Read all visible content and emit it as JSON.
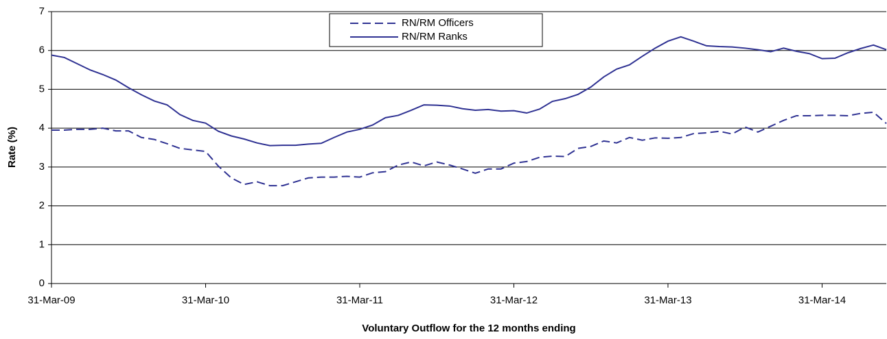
{
  "chart_data": {
    "type": "line",
    "y_label": "Rate (%)",
    "x_label": "Voluntary Outflow for the 12 months ending",
    "categories": [
      "31-Mar-09",
      null,
      null,
      null,
      null,
      null,
      null,
      null,
      null,
      null,
      null,
      null,
      "31-Mar-10",
      null,
      null,
      null,
      null,
      null,
      null,
      null,
      null,
      null,
      null,
      null,
      "31-Mar-11",
      null,
      null,
      null,
      null,
      null,
      null,
      null,
      null,
      null,
      null,
      null,
      "31-Mar-12",
      null,
      null,
      null,
      null,
      null,
      null,
      null,
      null,
      null,
      null,
      null,
      "31-Mar-13",
      null,
      null,
      null,
      null,
      null,
      null,
      null,
      null,
      null,
      null,
      null,
      "31-Mar-14",
      null,
      null,
      null,
      null,
      null
    ],
    "series": [
      {
        "name": "RN/RM Officers",
        "color": "#2e3192",
        "dash": true,
        "values": [
          3.95,
          3.95,
          3.97,
          3.97,
          4.0,
          3.93,
          3.93,
          3.76,
          3.71,
          3.6,
          3.48,
          3.44,
          3.4,
          3.02,
          2.72,
          2.55,
          2.62,
          2.52,
          2.52,
          2.62,
          2.72,
          2.74,
          2.74,
          2.76,
          2.74,
          2.85,
          2.88,
          3.05,
          3.13,
          3.03,
          3.13,
          3.05,
          2.95,
          2.84,
          2.95,
          2.95,
          3.1,
          3.14,
          3.25,
          3.28,
          3.27,
          3.48,
          3.53,
          3.67,
          3.62,
          3.76,
          3.69,
          3.75,
          3.74,
          3.76,
          3.86,
          3.88,
          3.92,
          3.85,
          4.03,
          3.9,
          4.05,
          4.2,
          4.32,
          4.32,
          4.33,
          4.33,
          4.32,
          4.38,
          4.41,
          4.12
        ]
      },
      {
        "name": "RN/RM Ranks",
        "color": "#2e3192",
        "dash": false,
        "values": [
          5.88,
          5.82,
          5.66,
          5.5,
          5.38,
          5.24,
          5.04,
          4.86,
          4.7,
          4.6,
          4.35,
          4.2,
          4.13,
          3.92,
          3.8,
          3.72,
          3.62,
          3.55,
          3.56,
          3.56,
          3.59,
          3.61,
          3.76,
          3.9,
          3.97,
          4.08,
          4.27,
          4.33,
          4.46,
          4.6,
          4.59,
          4.57,
          4.5,
          4.46,
          4.48,
          4.44,
          4.45,
          4.39,
          4.49,
          4.69,
          4.76,
          4.87,
          5.06,
          5.32,
          5.52,
          5.63,
          5.85,
          6.06,
          6.24,
          6.35,
          6.24,
          6.12,
          6.1,
          6.09,
          6.06,
          6.02,
          5.97,
          6.06,
          5.98,
          5.92,
          5.79,
          5.8,
          5.94,
          6.05,
          6.14,
          6.02
        ]
      }
    ],
    "ylim": [
      0,
      7
    ],
    "yticks": [
      0,
      1,
      2,
      3,
      4,
      5,
      6,
      7
    ],
    "grid": true
  }
}
